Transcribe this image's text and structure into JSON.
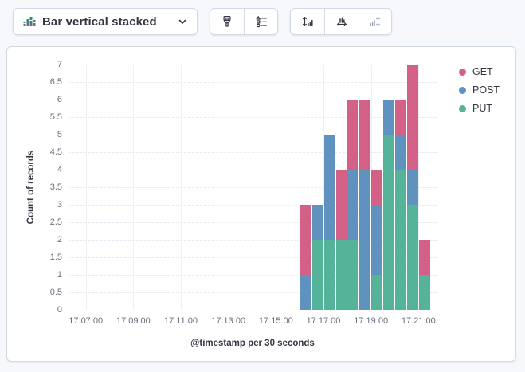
{
  "toolbar": {
    "chart_switcher": {
      "label": "Bar vertical stacked",
      "icon": "bar-vertical-stacked-icon",
      "chevron_icon": "chevron-down-icon"
    },
    "style_group": [
      {
        "icon": "paintbrush-icon"
      },
      {
        "icon": "shapes-list-icon"
      }
    ],
    "axis_group": [
      {
        "icon": "vertical-arrows-bars-icon",
        "disabled": false
      },
      {
        "icon": "horizontal-arrows-bars-icon",
        "disabled": false
      },
      {
        "icon": "bars-vertical-arrows-icon",
        "disabled": true
      }
    ]
  },
  "chart_data": {
    "type": "bar",
    "stacked": true,
    "title": "",
    "xlabel": "@timestamp per 30 seconds",
    "ylabel": "Count of records",
    "ylim": [
      0,
      7
    ],
    "ytick_step": 0.5,
    "yticks": [
      "0",
      "0.5",
      "1",
      "1.5",
      "2",
      "2.5",
      "3",
      "3.5",
      "4",
      "4.5",
      "5",
      "5.5",
      "6",
      "6.5",
      "7"
    ],
    "xticks": [
      "17:07:00",
      "17:09:00",
      "17:11:00",
      "17:13:00",
      "17:15:00",
      "17:17:00",
      "17:19:00",
      "17:21:00"
    ],
    "grid": {
      "vertical": "solid",
      "horizontal": "dashed"
    },
    "legend_position": "right",
    "bar_interval_seconds": 30,
    "bar_times": [
      "17:16:00",
      "17:16:30",
      "17:17:00",
      "17:17:30",
      "17:18:00",
      "17:18:30",
      "17:19:00",
      "17:19:30",
      "17:20:00",
      "17:20:30",
      "17:21:00"
    ],
    "series": [
      {
        "name": "GET",
        "color": "#d36086",
        "values": [
          2,
          0,
          0,
          2,
          2,
          2,
          1,
          0,
          1,
          3,
          1
        ]
      },
      {
        "name": "POST",
        "color": "#6092c0",
        "values": [
          1,
          1,
          3,
          0,
          2,
          4,
          2,
          1,
          1,
          1,
          0
        ]
      },
      {
        "name": "PUT",
        "color": "#54b399",
        "values": [
          0,
          2,
          2,
          2,
          2,
          0,
          1,
          5,
          4,
          3,
          1
        ]
      }
    ],
    "stack_order": [
      "PUT",
      "POST",
      "GET"
    ],
    "totals": [
      3,
      3,
      5,
      4,
      6,
      6,
      4,
      6,
      6,
      7,
      2
    ]
  }
}
